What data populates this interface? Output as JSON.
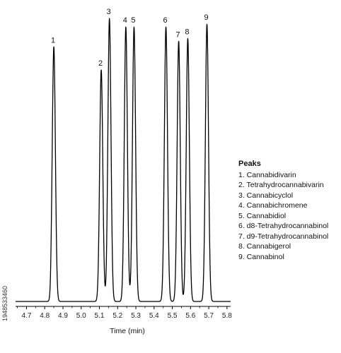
{
  "chart_data": {
    "type": "line",
    "xlabel": "Time (min)",
    "ylabel": "",
    "title": "",
    "xlim": [
      4.64,
      5.82
    ],
    "ylim": [
      0,
      1.0
    ],
    "xticks": [
      "4.7",
      "4.8",
      "4.9",
      "5.0",
      "5.1",
      "5.2",
      "5.3",
      "5.4",
      "5.5",
      "5.6",
      "5.7",
      "5.8"
    ],
    "grid": false,
    "peaks": [
      {
        "label": "1",
        "x": 4.85,
        "height": 0.89
      },
      {
        "label": "2",
        "x": 5.11,
        "height": 0.81
      },
      {
        "label": "3",
        "x": 5.155,
        "height": 0.99
      },
      {
        "label": "4",
        "x": 5.245,
        "height": 0.96
      },
      {
        "label": "5",
        "x": 5.29,
        "height": 0.96
      },
      {
        "label": "6",
        "x": 5.465,
        "height": 0.96
      },
      {
        "label": "7",
        "x": 5.535,
        "height": 0.91
      },
      {
        "label": "8",
        "x": 5.585,
        "height": 0.92
      },
      {
        "label": "9",
        "x": 5.69,
        "height": 0.97
      }
    ],
    "legend": {
      "title": "Peaks",
      "position": "right",
      "entries": [
        "1. Cannabidivarin",
        "2. Tetrahydrocannabivarin",
        "3. Cannabicyclol",
        "4. Cannabichromene",
        "5. Cannabidiol",
        "6. d8-Tetrahydrocannabinol",
        "7. d9-Tetrahydrocannabinol",
        "8. Cannabigerol",
        "9. Cannabinol"
      ]
    }
  },
  "watermark": "1948533460"
}
